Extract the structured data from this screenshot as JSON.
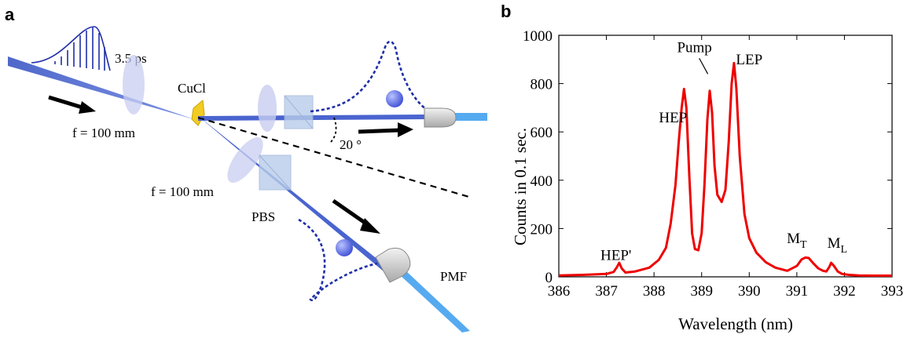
{
  "panel_a": {
    "label": "a",
    "pulse_duration": "3.5 ps",
    "crystal": "CuCl",
    "focal_top": "f = 100 mm",
    "focal_bottom": "f = 100 mm",
    "angle": "20 °",
    "pbs": "PBS",
    "pmf": "PMF"
  },
  "panel_b": {
    "label": "b"
  },
  "chart_data": {
    "type": "line",
    "title": "",
    "xlabel": "Wavelength (nm)",
    "ylabel": "Counts in 0.1 sec.",
    "xlim": [
      386,
      393
    ],
    "ylim": [
      0,
      1000
    ],
    "xticks": [
      "386",
      "387",
      "388",
      "389",
      "390",
      "391",
      "392",
      "393"
    ],
    "yticks": [
      "0",
      "200",
      "400",
      "600",
      "800",
      "1000"
    ],
    "grid": false,
    "color": "#ee0000",
    "series": [
      {
        "x": [
          386.0,
          386.5,
          387.0,
          387.15,
          387.22,
          387.27,
          387.32,
          387.4,
          387.6,
          387.9,
          388.1,
          388.25,
          388.35,
          388.45,
          388.52,
          388.58,
          388.63,
          388.68,
          388.74,
          388.8,
          388.86,
          388.93,
          389.0,
          389.06,
          389.12,
          389.17,
          389.22,
          389.27,
          389.33,
          389.42,
          389.5,
          389.57,
          389.63,
          389.68,
          389.73,
          389.8,
          389.9,
          390.0,
          390.15,
          390.35,
          390.55,
          390.8,
          391.0,
          391.1,
          391.18,
          391.25,
          391.35,
          391.45,
          391.55,
          391.62,
          391.68,
          391.72,
          391.78,
          391.86,
          391.95,
          392.1,
          392.3,
          392.6,
          393.0
        ],
        "y": [
          6,
          8,
          12,
          20,
          40,
          58,
          35,
          18,
          22,
          38,
          70,
          120,
          220,
          380,
          560,
          700,
          778,
          700,
          420,
          180,
          115,
          110,
          180,
          380,
          650,
          770,
          680,
          460,
          340,
          310,
          360,
          560,
          800,
          885,
          780,
          500,
          260,
          160,
          100,
          60,
          38,
          25,
          45,
          72,
          80,
          78,
          55,
          35,
          25,
          22,
          40,
          58,
          45,
          22,
          12,
          8,
          6,
          5,
          5
        ]
      }
    ],
    "annotations": [
      {
        "text": "HEP'",
        "x": 387.2,
        "y": 70
      },
      {
        "text": "HEP",
        "x": 388.4,
        "y": 640
      },
      {
        "text": "Pump",
        "x": 388.85,
        "y": 930
      },
      {
        "text": "LEP",
        "x": 390.0,
        "y": 880
      },
      {
        "text": "M",
        "sub": "T",
        "x": 391.0,
        "y": 140
      },
      {
        "text": "M",
        "sub": "L",
        "x": 391.85,
        "y": 120
      }
    ]
  }
}
